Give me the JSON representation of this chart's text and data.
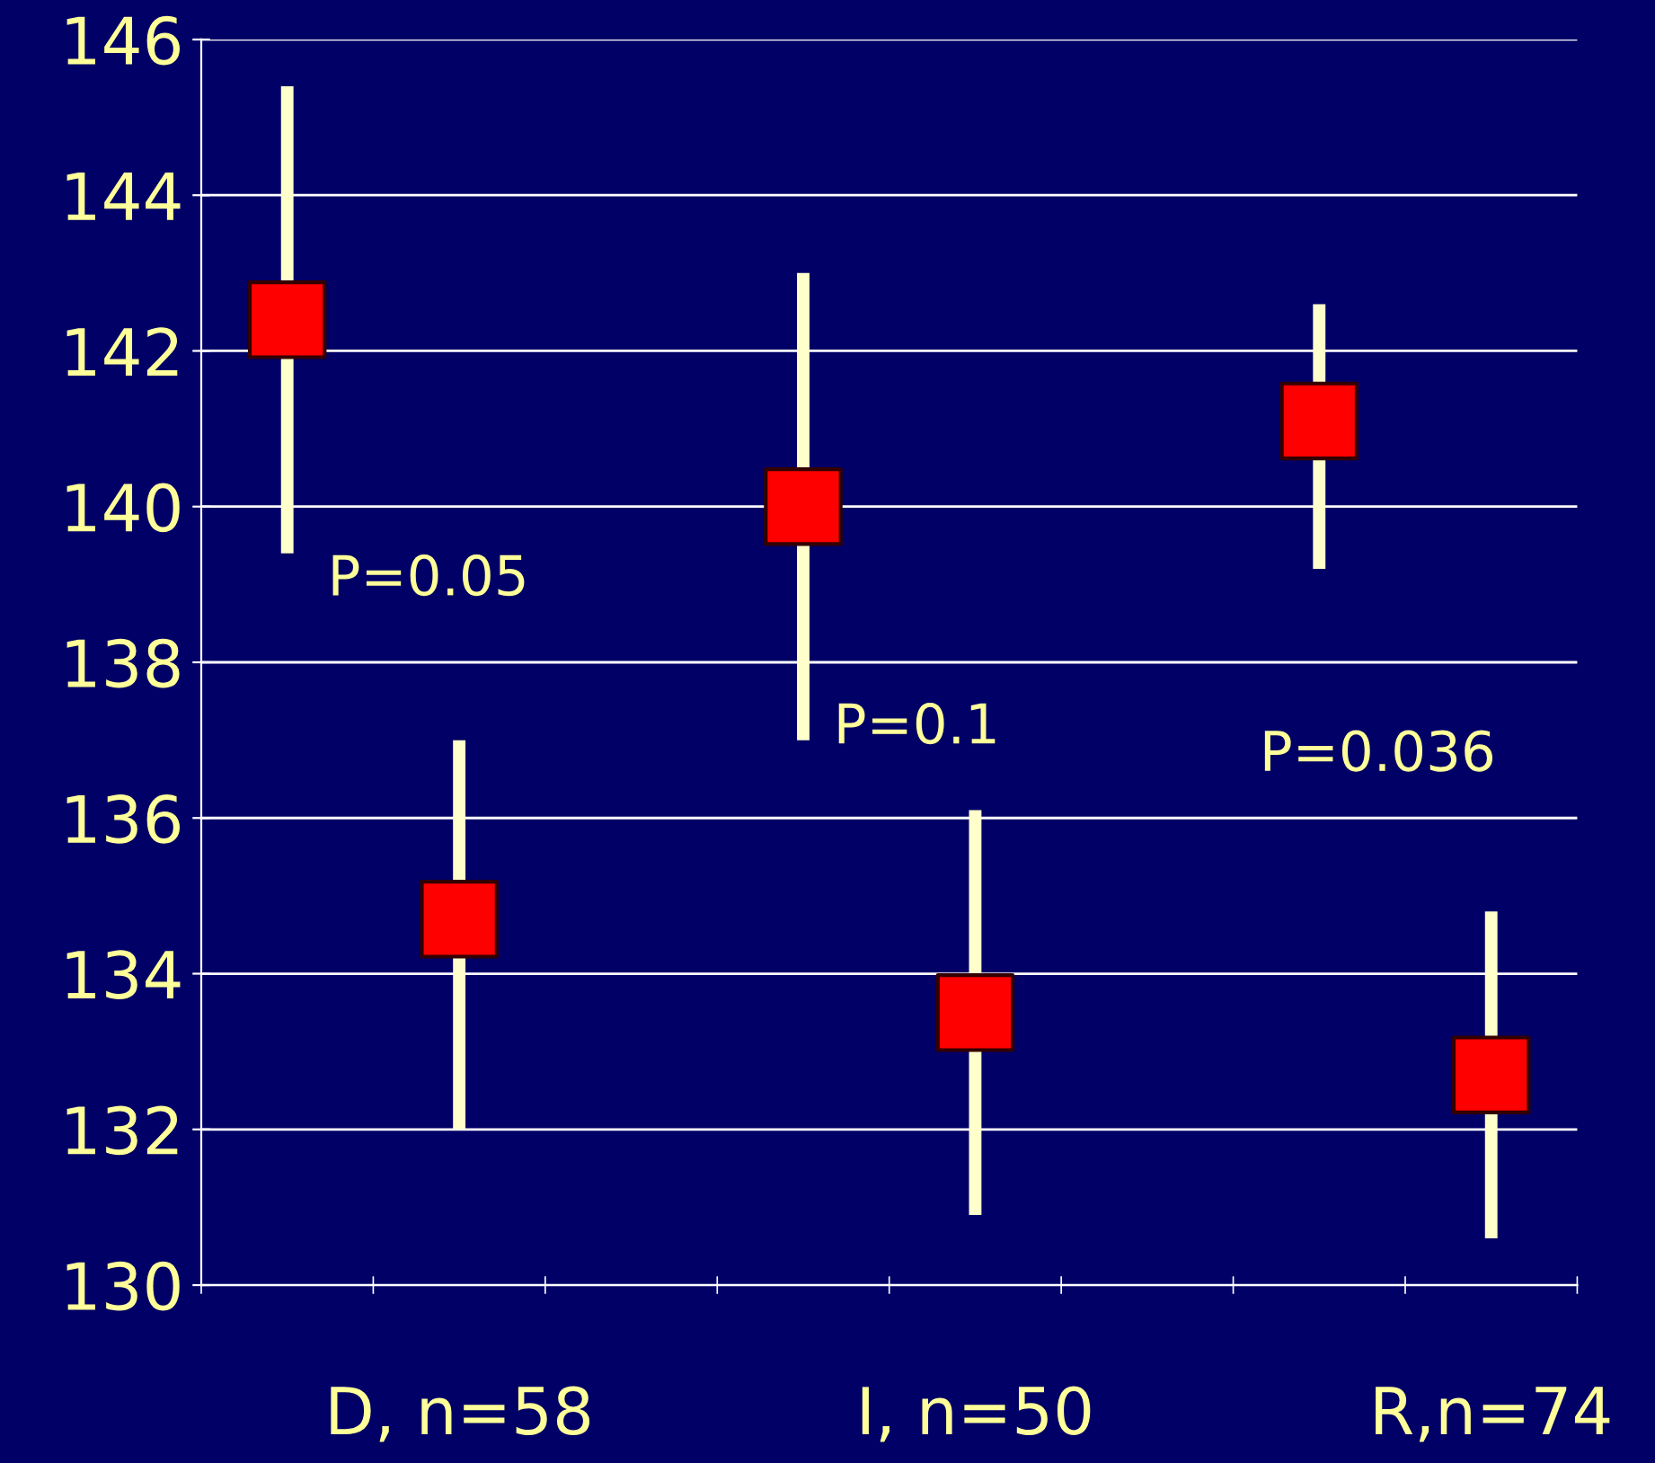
{
  "chart_data": {
    "type": "scatter",
    "categories": [
      null,
      "D, n=58",
      null,
      null,
      "I, n=50",
      null,
      null,
      "R,n=74"
    ],
    "series": [
      {
        "color": "#ff0000",
        "values": [
          142.4,
          134.7,
          null,
          140.0,
          133.5,
          null,
          141.1,
          132.7
        ],
        "errors": [
          [
            139.4,
            145.4
          ],
          [
            132.0,
            137.0
          ],
          null,
          [
            137.0,
            143.0
          ],
          [
            130.9,
            136.1
          ],
          null,
          [
            139.2,
            142.6
          ],
          [
            130.6,
            134.8
          ]
        ]
      }
    ],
    "ylim": [
      130,
      146
    ],
    "yticks": [
      130,
      132,
      134,
      136,
      138,
      140,
      142,
      144,
      146
    ],
    "grid": "y",
    "marker": "square",
    "legend": false,
    "annotations": [
      "P=0.05",
      "P=0.1",
      "P=0.036"
    ]
  }
}
